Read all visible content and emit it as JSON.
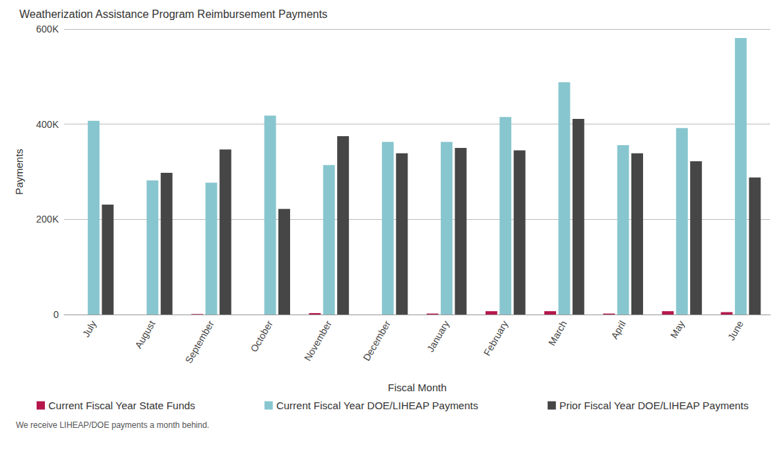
{
  "chart_data": {
    "type": "bar",
    "title": "Weatherization Assistance Program Reimbursement Payments",
    "x_label": "Fiscal Month",
    "y_label": "Payments",
    "annotations": [
      "We receive LIHEAP/DOE payments a month behind."
    ],
    "categories": [
      "July",
      "August",
      "September",
      "October",
      "November",
      "December",
      "January",
      "February",
      "March",
      "April",
      "May",
      "June"
    ],
    "series": [
      {
        "name": "Current Fiscal Year State Funds",
        "color": "#b5174b",
        "values": [
          0,
          0,
          1000,
          0,
          3000,
          0,
          2000,
          7000,
          7000,
          2000,
          7000,
          5000
        ]
      },
      {
        "name": "Current Fiscal Year DOE/LIHEAP Payments",
        "color": "#88c6cf",
        "values": [
          407000,
          282000,
          277000,
          418000,
          314000,
          363000,
          363000,
          415000,
          488000,
          356000,
          392000,
          581000
        ]
      },
      {
        "name": "Prior Fiscal Year DOE/LIHEAP Payments",
        "color": "#464646",
        "values": [
          231000,
          298000,
          347000,
          222000,
          375000,
          339000,
          350000,
          345000,
          411000,
          339000,
          322000,
          288000
        ]
      }
    ],
    "ylim": [
      0,
      600000
    ],
    "yticks": [
      0,
      {
        "value": 200000,
        "label": "200K"
      },
      {
        "value": 400000,
        "label": "400K"
      },
      {
        "value": 600000,
        "label": "600K"
      }
    ],
    "grid": true,
    "legend": "bottom-left"
  }
}
